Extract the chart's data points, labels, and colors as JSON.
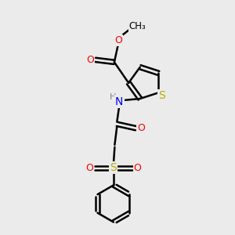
{
  "bg_color": "#ebebeb",
  "bond_color": "#000000",
  "bond_width": 1.8,
  "atom_colors": {
    "O": "#ff0000",
    "N": "#0000ff",
    "S_thio": "#bbaa00",
    "S_sulf": "#bbaa00",
    "C": "#000000",
    "H": "#808080"
  },
  "font_size": 9,
  "fig_size": [
    3.0,
    3.0
  ],
  "dpi": 100,
  "xlim": [
    0,
    10
  ],
  "ylim": [
    0,
    10
  ]
}
